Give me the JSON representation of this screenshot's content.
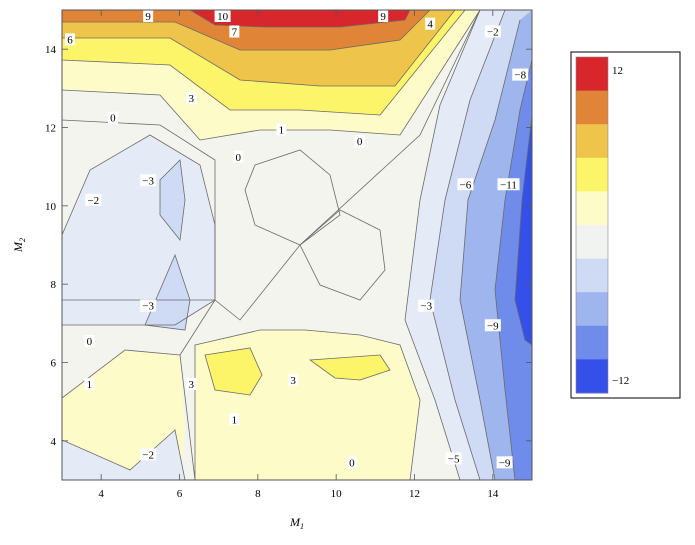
{
  "chart_data": {
    "type": "contour",
    "title": "",
    "xlabel": "M",
    "xlabel_sub": "1",
    "ylabel": "M",
    "ylabel_sub": "2",
    "xlim": [
      3,
      15
    ],
    "ylim": [
      3,
      15
    ],
    "x_ticks": [
      4,
      6,
      8,
      10,
      12,
      14
    ],
    "y_ticks": [
      4,
      6,
      8,
      10,
      12,
      14
    ],
    "grid": false,
    "legend_placement": "right",
    "legend": {
      "top_label": "12",
      "bottom_label": "−12",
      "colors": [
        "#d7262c",
        "#e08538",
        "#eec44a",
        "#fdf569",
        "#fdfbc8",
        "#f0f3f0",
        "#cfdaf4",
        "#9fb5ee",
        "#6f8cea",
        "#3450e8"
      ]
    },
    "z_description": "values from -12 to 12",
    "region_fills": {
      "c9": "#d7262c",
      "c7": "#e08538",
      "c4": "#eec44a",
      "c2": "#fdf569",
      "c1": "#fdfbc8",
      "c0": "#f3f4ee",
      "n1": "#e4ebf7",
      "n2": "#cfdaf4",
      "n5": "#9fb5ee",
      "n8": "#6f8cea",
      "n11": "#3450e8"
    },
    "contour_labels": [
      {
        "text": "9",
        "x": 5.2,
        "y": 15.0
      },
      {
        "text": "10",
        "x": 7.1,
        "y": 14.9
      },
      {
        "text": "9",
        "x": 11.2,
        "y": 15.0
      },
      {
        "text": "7",
        "x": 7.4,
        "y": 14.4
      },
      {
        "text": "4",
        "x": 12.4,
        "y": 14.6
      },
      {
        "text": "−2",
        "x": 14.0,
        "y": 14.4
      },
      {
        "text": "6",
        "x": 3.0,
        "y": 14.2
      },
      {
        "text": "−8",
        "x": 14.7,
        "y": 13.3
      },
      {
        "text": "3",
        "x": 6.3,
        "y": 12.7
      },
      {
        "text": "0",
        "x": 4.3,
        "y": 12.2
      },
      {
        "text": "1",
        "x": 8.6,
        "y": 11.9
      },
      {
        "text": "0",
        "x": 10.6,
        "y": 11.6
      },
      {
        "text": "0",
        "x": 7.5,
        "y": 11.2
      },
      {
        "text": "−3",
        "x": 5.2,
        "y": 10.6
      },
      {
        "text": "−6",
        "x": 13.3,
        "y": 10.5
      },
      {
        "text": "−11",
        "x": 14.4,
        "y": 10.5
      },
      {
        "text": "−2",
        "x": 3.8,
        "y": 10.1
      },
      {
        "text": "−3",
        "x": 5.2,
        "y": 7.4
      },
      {
        "text": "−3",
        "x": 12.3,
        "y": 7.4
      },
      {
        "text": "−9",
        "x": 14.0,
        "y": 6.9
      },
      {
        "text": "0",
        "x": 3.7,
        "y": 6.5
      },
      {
        "text": "1",
        "x": 3.7,
        "y": 5.4
      },
      {
        "text": "3",
        "x": 6.3,
        "y": 5.4
      },
      {
        "text": "3",
        "x": 8.9,
        "y": 5.5
      },
      {
        "text": "1",
        "x": 7.4,
        "y": 4.5
      },
      {
        "text": "−2",
        "x": 5.2,
        "y": 3.6
      },
      {
        "text": "0",
        "x": 10.4,
        "y": 3.4
      },
      {
        "text": "−5",
        "x": 13.0,
        "y": 3.5
      },
      {
        "text": "−9",
        "x": 14.3,
        "y": 3.4
      }
    ]
  }
}
